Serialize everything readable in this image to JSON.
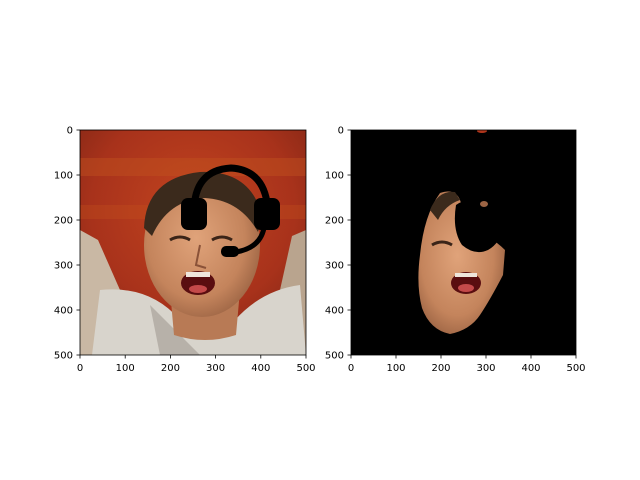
{
  "chart_data": [
    {
      "type": "image",
      "title": "",
      "content": "photo of a man shouting, with a black headset overlay",
      "xlim": [
        0,
        500
      ],
      "ylim": [
        500,
        0
      ],
      "xticks": [
        0,
        100,
        200,
        300,
        400,
        500
      ],
      "yticks": [
        0,
        100,
        200,
        300,
        400,
        500
      ],
      "xtick_labels": [
        "0",
        "100",
        "200",
        "300",
        "400",
        "500"
      ],
      "ytick_labels": [
        "0",
        "100",
        "200",
        "300",
        "400",
        "500"
      ]
    },
    {
      "type": "image",
      "title": "",
      "content": "segmented face on black background, headset region masked out",
      "xlim": [
        0,
        500
      ],
      "ylim": [
        500,
        0
      ],
      "xticks": [
        0,
        100,
        200,
        300,
        400,
        500
      ],
      "yticks": [
        0,
        100,
        200,
        300,
        400,
        500
      ],
      "xtick_labels": [
        "0",
        "100",
        "200",
        "300",
        "400",
        "500"
      ],
      "ytick_labels": [
        "0",
        "100",
        "200",
        "300",
        "400",
        "500"
      ]
    }
  ],
  "colors": {
    "background_red": "#b0361c",
    "skin": "#c98a62",
    "hair": "#3b2a1c",
    "shirt": "#d8d4cc",
    "mouth": "#5a0e10",
    "headset": "#000000",
    "mask": "#000000"
  }
}
